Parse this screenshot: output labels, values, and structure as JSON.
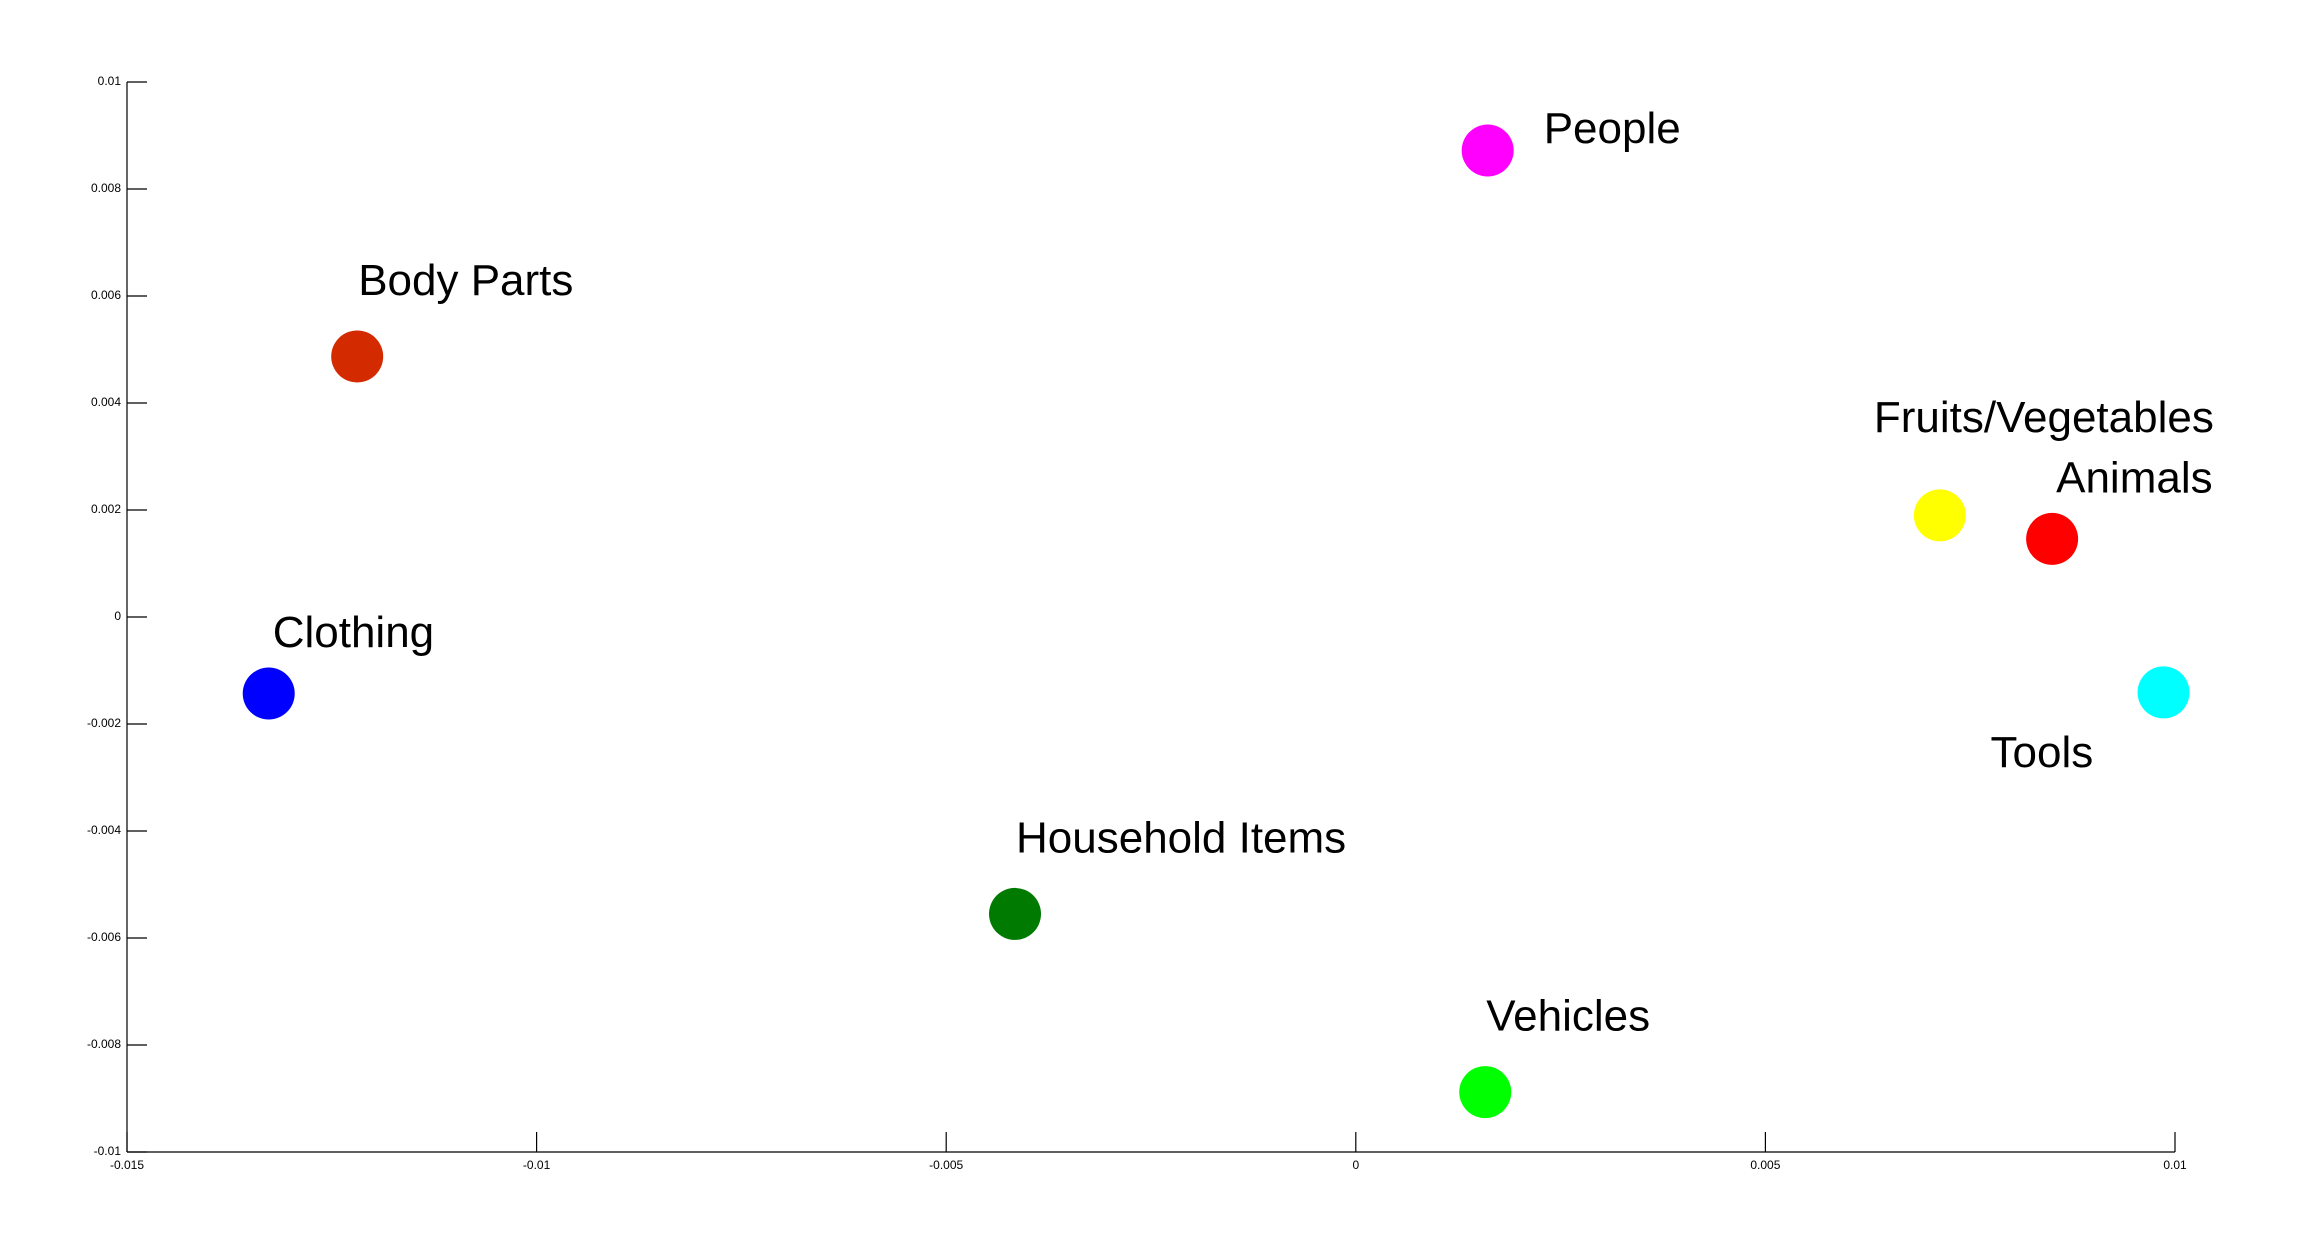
{
  "chart_data": {
    "type": "scatter",
    "labels": [
      "Clothing",
      "Body Parts",
      "People",
      "Fruits/Vegetables",
      "Animals",
      "Tools",
      "Household Items",
      "Vehicles"
    ],
    "x": [
      -0.01327,
      -0.01219,
      0.00161,
      0.00713,
      0.0085,
      0.00986,
      -0.00416,
      0.00158
    ],
    "values": [
      -0.00143,
      0.00487,
      0.00872,
      0.0019,
      0.00146,
      -0.00141,
      -0.00555,
      -0.00888
    ],
    "colors": [
      "#0000ff",
      "#d42a00",
      "#ff00ff",
      "#ffff00",
      "#ff0000",
      "#00ffff",
      "#007a00",
      "#00ff00"
    ],
    "xlim": [
      -0.015,
      0.01
    ],
    "ylim": [
      -0.01,
      0.01
    ],
    "xticks": [
      -0.015,
      -0.01,
      -0.005,
      0,
      0.005,
      0.01
    ],
    "yticks": [
      -0.01,
      -0.008,
      -0.006,
      -0.004,
      -0.002,
      0,
      0.002,
      0.004,
      0.006,
      0.008,
      0.01
    ]
  }
}
